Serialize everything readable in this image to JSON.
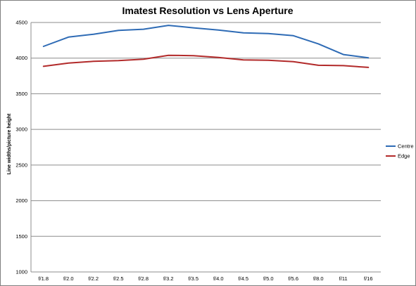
{
  "chart_data": {
    "type": "line",
    "title": "Imatest Resolution vs Lens Aperture",
    "xlabel": "",
    "ylabel": "Line widths/picture height",
    "categories": [
      "f/1.8",
      "f/2.0",
      "f/2.2",
      "f/2.5",
      "f/2.8",
      "f/3.2",
      "f/3.5",
      "f/4.0",
      "f/4.5",
      "f/5.0",
      "f/5.6",
      "f/8.0",
      "f/11",
      "f/16"
    ],
    "ylim": [
      1000,
      4500
    ],
    "yticks": [
      "1000",
      "1500",
      "2000",
      "2500",
      "3000",
      "3500",
      "4000",
      "4500"
    ],
    "grid": true,
    "legend_position": "right",
    "series": [
      {
        "name": "Centre",
        "color": "#2e6bb5",
        "values": [
          4165,
          4295,
          4335,
          4390,
          4405,
          4460,
          4425,
          4395,
          4355,
          4345,
          4315,
          4200,
          4050,
          4005
        ]
      },
      {
        "name": "Edge",
        "color": "#b22a2a",
        "values": [
          3885,
          3930,
          3955,
          3965,
          3985,
          4040,
          4035,
          4010,
          3975,
          3970,
          3950,
          3900,
          3895,
          3870
        ]
      }
    ]
  }
}
